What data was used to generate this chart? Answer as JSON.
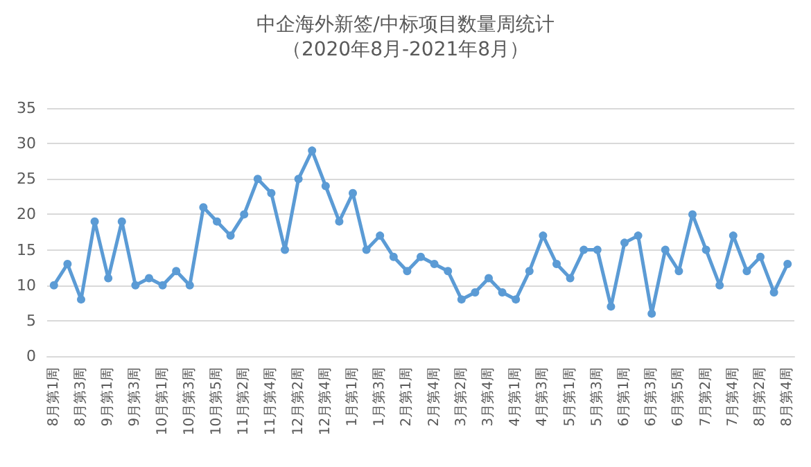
{
  "chart_data": {
    "type": "line",
    "title": "中企海外新签/中标项目数量周统计",
    "subtitle": "（2020年8月-2021年8月）",
    "categories": [
      "8月第1周",
      null,
      "8月第3周",
      null,
      "9月第1周",
      null,
      "9月第3周",
      null,
      "10月第1周",
      null,
      "10月第3周",
      null,
      "10月第5周",
      null,
      "11月第2周",
      null,
      "11月第4周",
      null,
      "12月第2周",
      null,
      "12月第4周",
      null,
      "1月第1周",
      null,
      "1月第3周",
      null,
      "2月第1周",
      null,
      "2月第4周",
      null,
      "3月第2周",
      null,
      "3月第4周",
      null,
      "4月第1周",
      null,
      "4月第3周",
      null,
      "5月第1周",
      null,
      "5月第3周",
      null,
      "6月第1周",
      null,
      "6月第3周",
      null,
      "6月第5周",
      null,
      "7月第2周",
      null,
      "7月第4周",
      null,
      "8月第2周",
      null,
      "8月第4周"
    ],
    "series": [
      {
        "color": "#5b9bd5",
        "values": [
          10,
          13,
          8,
          19,
          11,
          19,
          10,
          11,
          10,
          12,
          10,
          21,
          19,
          17,
          20,
          25,
          23,
          15,
          25,
          29,
          24,
          19,
          23,
          15,
          17,
          14,
          12,
          14,
          13,
          12,
          8,
          9,
          11,
          9,
          8,
          12,
          17,
          13,
          11,
          15,
          15,
          7,
          16,
          17,
          6,
          15,
          12,
          20,
          15,
          10,
          17,
          12,
          14,
          9,
          13
        ]
      }
    ],
    "ylim": [
      0,
      35
    ],
    "yticks": [
      0,
      5,
      10,
      15,
      20,
      25,
      30,
      35
    ],
    "grid": "y",
    "marker": "circle",
    "line_style": "solid"
  }
}
